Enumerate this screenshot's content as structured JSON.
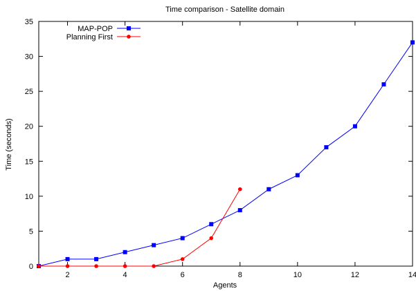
{
  "chart_data": {
    "type": "line",
    "title": "Time comparison - Satellite domain",
    "xlabel": "Agents",
    "ylabel": "Time (seconds)",
    "xlim": [
      1,
      14
    ],
    "ylim": [
      0,
      35
    ],
    "x_ticks": [
      2,
      4,
      6,
      8,
      10,
      12,
      14
    ],
    "y_ticks": [
      0,
      5,
      10,
      15,
      20,
      25,
      30,
      35
    ],
    "grid": false,
    "legend_position": "top-left",
    "series": [
      {
        "name": "MAP-POP",
        "color": "#0000ff",
        "marker": "square",
        "x": [
          1,
          2,
          3,
          4,
          5,
          6,
          7,
          8,
          9,
          10,
          11,
          12,
          13,
          14
        ],
        "y": [
          0,
          1,
          1,
          2,
          3,
          4,
          6,
          8,
          11,
          13,
          17,
          20,
          26,
          32
        ]
      },
      {
        "name": "Planning First",
        "color": "#ff0000",
        "marker": "circle",
        "x": [
          1,
          2,
          3,
          4,
          5,
          6,
          7,
          8
        ],
        "y": [
          0,
          0,
          0,
          0,
          0,
          1,
          4,
          11
        ]
      }
    ]
  }
}
